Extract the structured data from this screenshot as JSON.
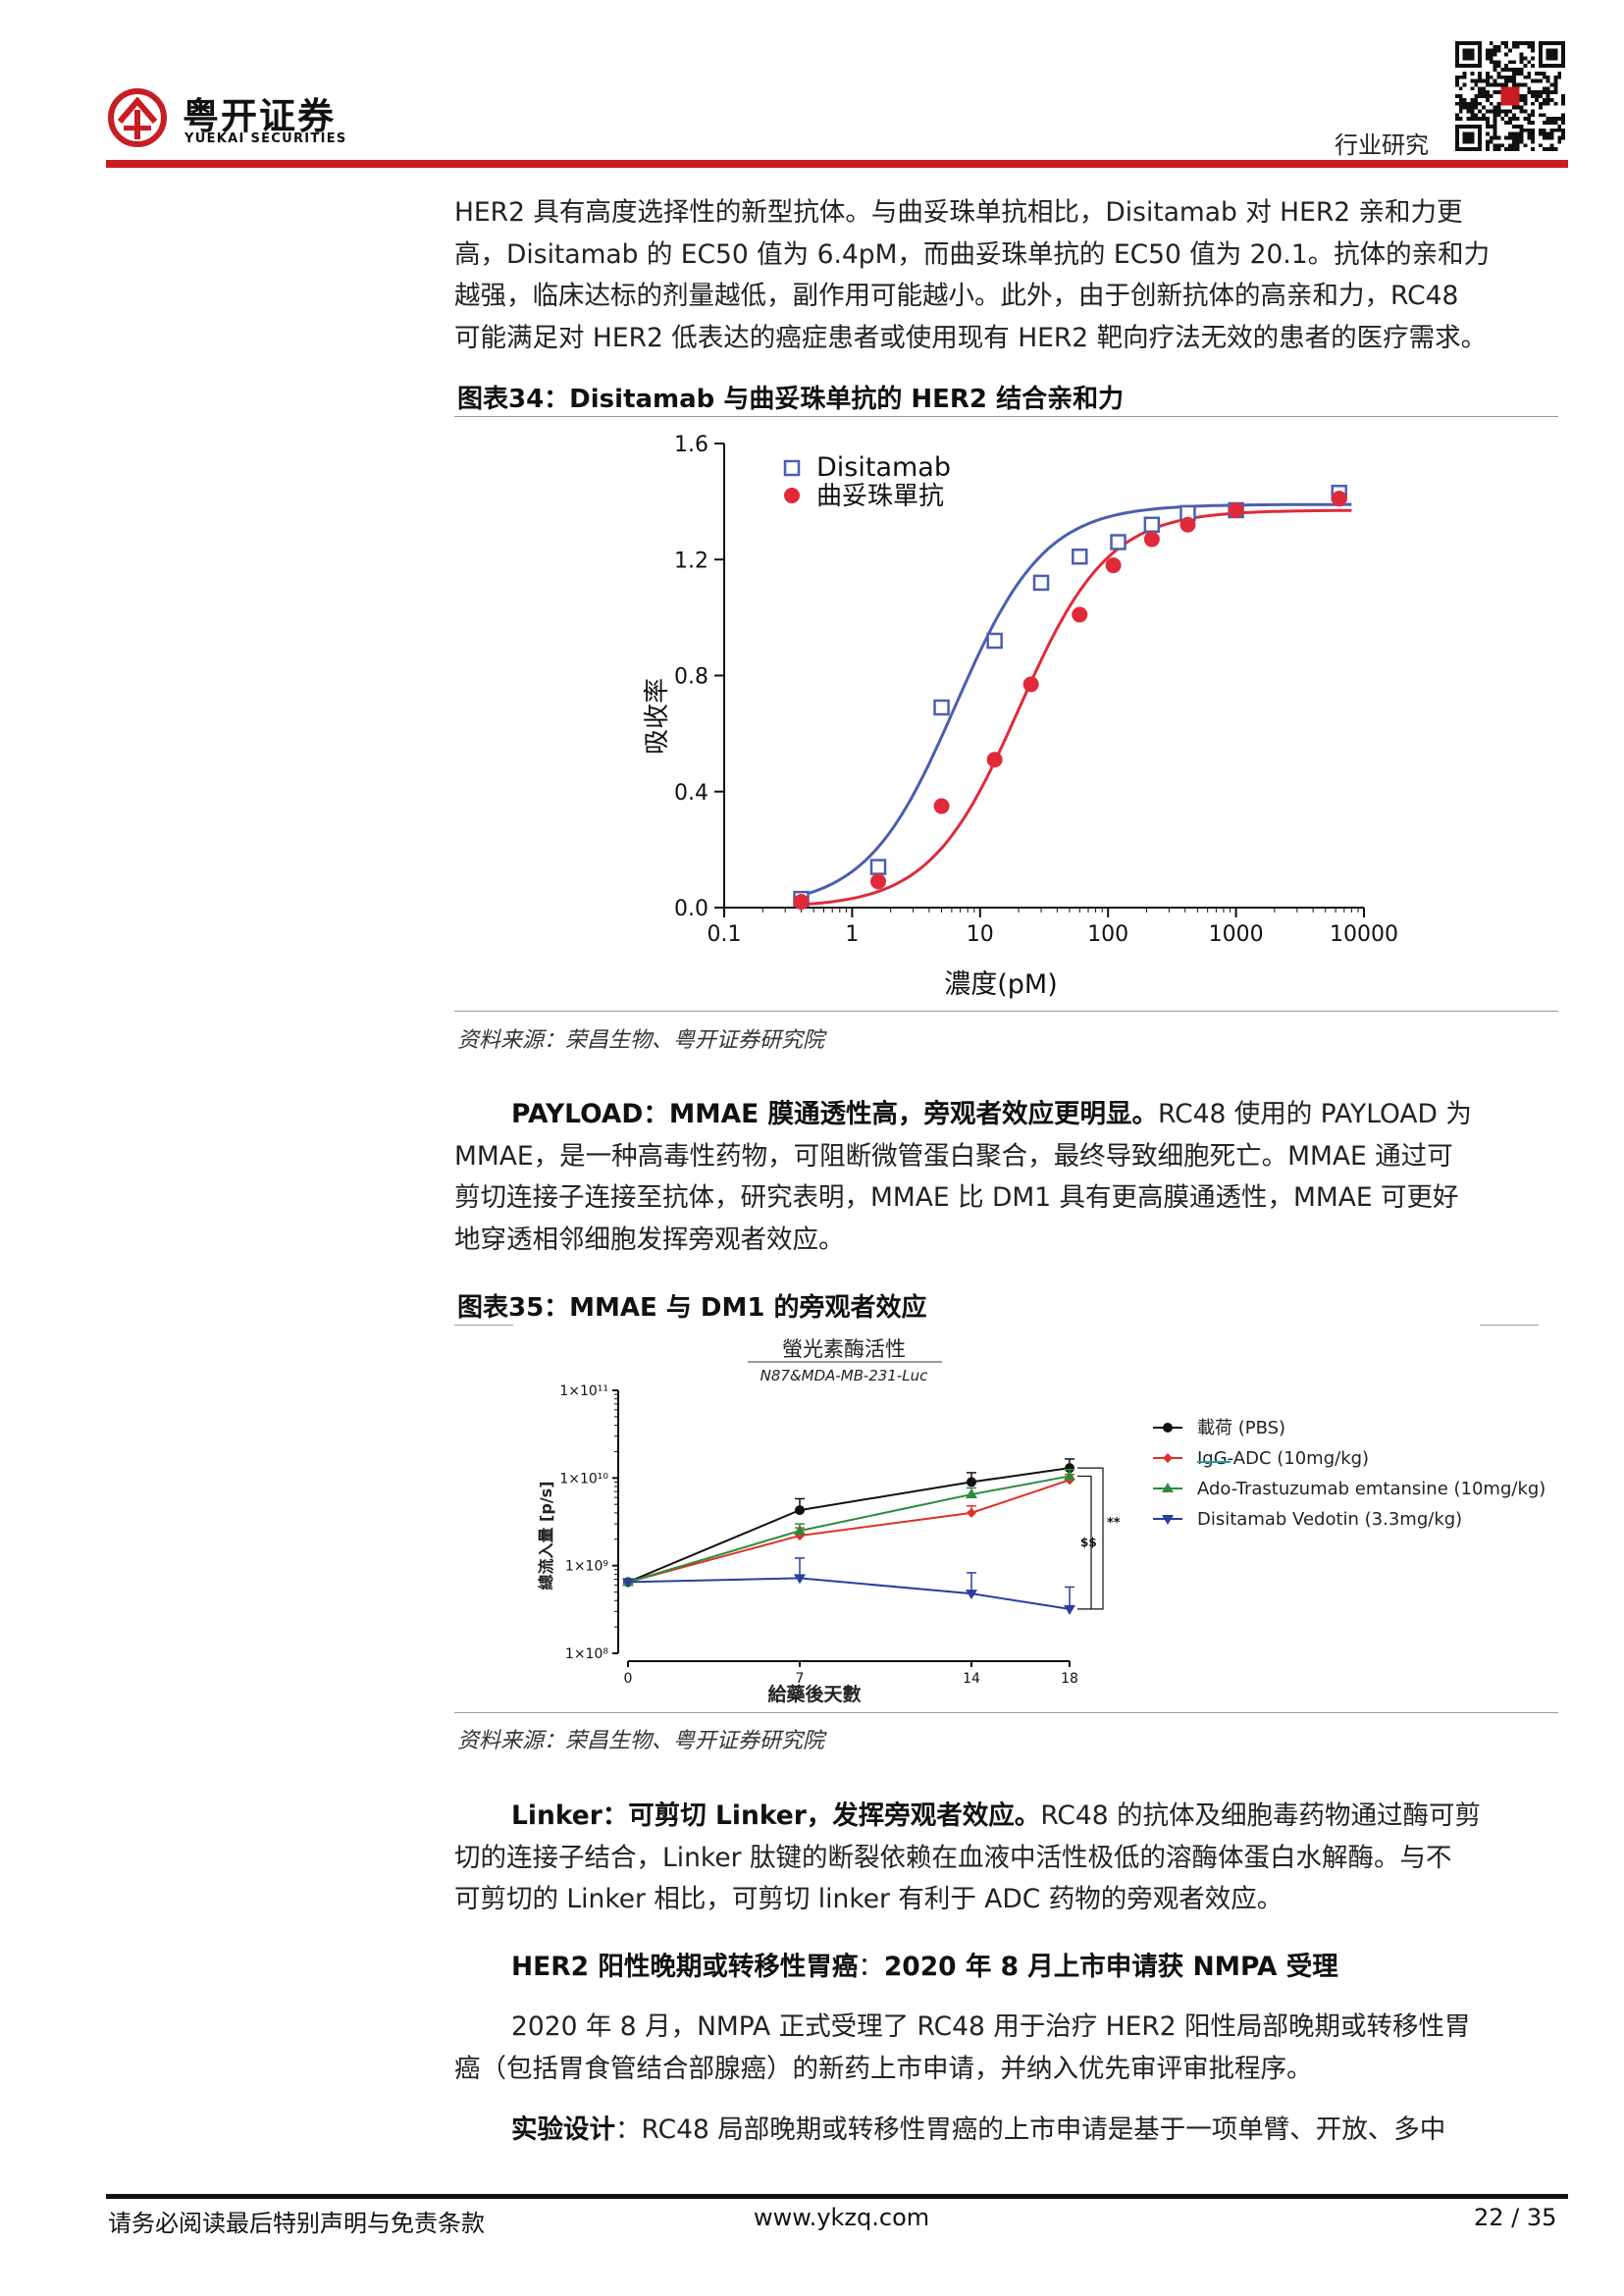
{
  "header": {
    "logo_cn": "粤开证券",
    "logo_en": "YUEKAI SECURITIES",
    "report_type": "行业研究",
    "accent_color": "#c81d22"
  },
  "paragraphs": {
    "p1": [
      "HER2 具有高度选择性的新型抗体。与曲妥珠单抗相比，Disitamab 对 HER2 亲和力更",
      "高，Disitamab 的 EC50 值为 6.4pM，而曲妥珠单抗的 EC50 值为 20.1。抗体的亲和力",
      "越强，临床达标的剂量越低，副作用可能越小。此外，由于创新抗体的高亲和力，RC48",
      "可能满足对 HER2 低表达的癌症患者或使用现有 HER2 靶向疗法无效的患者的医疗需求。"
    ],
    "p2_bold": "PAYLOAD：MMAE 膜通透性高，旁观者效应更明显。",
    "p2_rest": "RC48 使用的 PAYLOAD 为",
    "p2_lines": [
      "MMAE，是一种高毒性药物，可阻断微管蛋白聚合，最终导致细胞死亡。MMAE 通过可",
      "剪切连接子连接至抗体，研究表明，MMAE 比 DM1 具有更高膜通透性，MMAE 可更好",
      "地穿透相邻细胞发挥旁观者效应。"
    ],
    "p3_bold": "Linker：可剪切 Linker，发挥旁观者效应。",
    "p3_rest": "RC48 的抗体及细胞毒药物通过酶可剪",
    "p3_lines": [
      "切的连接子结合，Linker 肽键的断裂依赖在血液中活性极低的溶酶体蛋白水解酶。与不",
      "可剪切的 Linker 相比，可剪切 linker 有利于 ADC 药物的旁观者效应。"
    ],
    "h_bold_a": "HER2 阳性晚期或转移性胃癌",
    "h_sep": "：",
    "h_bold_b": "2020 年 8 月上市申请获 NMPA 受理",
    "p4_first": "2020 年 8 月，NMPA 正式受理了 RC48 用于治疗 HER2 阳性局部晚期或转移性胃",
    "p4_second": "癌（包括胃食管结合部腺癌）的新药上市申请，并纳入优先审评审批程序。",
    "p5_bold": "实验设计",
    "p5_rest": "：RC48 局部晚期或转移性胃癌的上市申请是基于一项单臂、开放、多中"
  },
  "figures": {
    "fig34_title": "图表34：Disitamab 与曲妥珠单抗的 HER2 结合亲和力",
    "fig35_title": "图表35：MMAE 与 DM1 的旁观者效应",
    "source": "资料来源：荣昌生物、粤开证券研究院"
  },
  "chart_data": [
    {
      "type": "scatter",
      "ylabel": "吸收率",
      "xlabel": "濃度(pM)",
      "x_scale": "log",
      "x_ticks": [
        "0.1",
        "1",
        "10",
        "100",
        "1000",
        "10000"
      ],
      "y_ticks": [
        "0.0",
        "0.4",
        "0.8",
        "1.2",
        "1.6"
      ],
      "ylim": [
        0,
        1.6
      ],
      "xlim": [
        0.1,
        10000
      ],
      "legend_position": "top-left",
      "series": [
        {
          "name": "Disitamab",
          "marker": "open-square",
          "color": "#4a5fb0",
          "x": [
            0.4,
            1.6,
            5,
            13,
            30,
            60,
            120,
            220,
            420,
            1000,
            6400
          ],
          "y": [
            0.03,
            0.14,
            0.69,
            0.92,
            1.12,
            1.21,
            1.26,
            1.32,
            1.36,
            1.37,
            1.43
          ],
          "fit_ec50": 6.4
        },
        {
          "name": "曲妥珠單抗",
          "marker": "filled-circle",
          "color": "#e02a3a",
          "x": [
            0.4,
            1.6,
            5,
            13,
            25,
            60,
            110,
            220,
            420,
            1000,
            6400
          ],
          "y": [
            0.02,
            0.09,
            0.35,
            0.51,
            0.77,
            1.01,
            1.18,
            1.27,
            1.32,
            1.37,
            1.41
          ],
          "fit_ec50": 20.1
        }
      ]
    },
    {
      "type": "line",
      "title": "螢光素酶活性",
      "subtitle": "N87&MDA-MB-231-Luc",
      "ylabel": "總流入量 [p/s]",
      "xlabel": "給藥後天數",
      "y_scale": "log",
      "x": [
        0,
        7,
        14,
        18
      ],
      "x_ticks": [
        "0",
        "7",
        "14",
        "18"
      ],
      "y_ticks": [
        "1×10⁸",
        "1×10⁹",
        "1×10¹⁰",
        "1×10¹¹"
      ],
      "ylim": [
        100000000,
        100000000000
      ],
      "legend_position": "top-right",
      "annotations": [
        "$$",
        "**"
      ],
      "series": [
        {
          "name": "載荷 (PBS)",
          "color": "#111111",
          "marker": "circle",
          "values": [
            650000000,
            4300000000,
            9000000000,
            13000000000
          ],
          "err": [
            0,
            1500000000,
            2500000000,
            3500000000
          ]
        },
        {
          "name": "IgG-ADC (10mg/kg)",
          "color": "#e0302a",
          "marker": "diamond",
          "values": [
            650000000,
            2200000000,
            4000000000,
            9500000000
          ],
          "err": [
            0,
            500000000,
            800000000,
            1500000000
          ]
        },
        {
          "name": "Ado-Trastuzumab emtansine (10mg/kg)",
          "color": "#2e8b3c",
          "marker": "triangle-up",
          "values": [
            650000000,
            2500000000,
            6500000000,
            10500000000
          ],
          "err": [
            0,
            500000000,
            1200000000,
            2000000000
          ]
        },
        {
          "name": "Disitamab Vedotin (3.3mg/kg)",
          "color": "#2a3f9c",
          "marker": "triangle-down",
          "values": [
            650000000,
            720000000,
            480000000,
            320000000
          ],
          "err": [
            0,
            500000000,
            350000000,
            250000000
          ]
        }
      ]
    }
  ],
  "footer": {
    "disclaimer": "请务必阅读最后特别声明与免责条款",
    "website": "www.ykzq.com",
    "page": "22 / 35"
  }
}
